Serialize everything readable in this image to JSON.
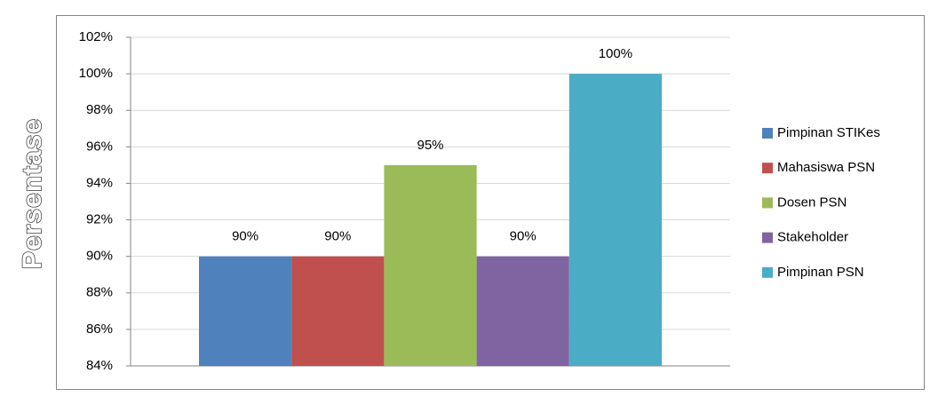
{
  "chart_data": {
    "type": "bar",
    "y_label": "Persentase",
    "series": [
      {
        "name": "Pimpinan STIKes",
        "color": "#4f81bd",
        "values": [
          90
        ],
        "value_labels": [
          "90%"
        ]
      },
      {
        "name": "Mahasiswa PSN",
        "color": "#c0504d",
        "values": [
          90
        ],
        "value_labels": [
          "90%"
        ]
      },
      {
        "name": "Dosen PSN",
        "color": "#9bbb59",
        "values": [
          95
        ],
        "value_labels": [
          "95%"
        ]
      },
      {
        "name": "Stakeholder",
        "color": "#8064a2",
        "values": [
          90
        ],
        "value_labels": [
          "90%"
        ]
      },
      {
        "name": "Pimpinan PSN",
        "color": "#4bacc6",
        "values": [
          100
        ],
        "value_labels": [
          "100%"
        ]
      }
    ],
    "ylim": [
      84,
      102
    ],
    "yticks": [
      {
        "value": 84,
        "label": "84%"
      },
      {
        "value": 86,
        "label": "86%"
      },
      {
        "value": 88,
        "label": "88%"
      },
      {
        "value": 90,
        "label": "90%"
      },
      {
        "value": 92,
        "label": "92%"
      },
      {
        "value": 94,
        "label": "94%"
      },
      {
        "value": 96,
        "label": "96%"
      },
      {
        "value": 98,
        "label": "98%"
      },
      {
        "value": 100,
        "label": "100%"
      },
      {
        "value": 102,
        "label": "102%"
      }
    ],
    "grid": true,
    "legend": "right"
  }
}
